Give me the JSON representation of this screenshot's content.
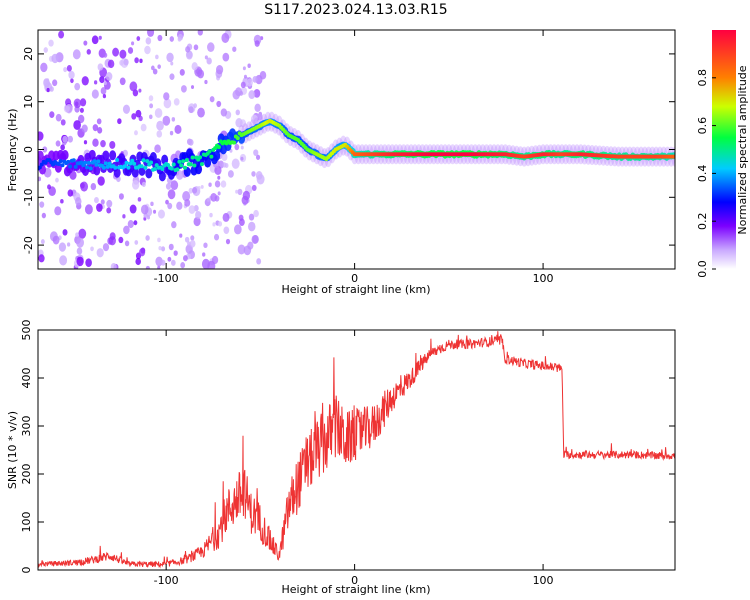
{
  "figure": {
    "title": "S117.2023.024.13.03.R15"
  },
  "chart_data": [
    {
      "type": "heatmap",
      "xlabel": "Height of straight line (km)",
      "ylabel": "Frequency (Hz)",
      "xlim": [
        -168,
        170
      ],
      "ylim": [
        -25,
        25
      ],
      "x_ticks": [
        -100,
        0,
        100
      ],
      "y_ticks": [
        -20,
        -10,
        0,
        10,
        20
      ],
      "colorbar": {
        "label": "Normalized spectral amplitude",
        "range": [
          0,
          1
        ],
        "ticks": [
          0.0,
          0.2,
          0.4,
          0.6,
          0.8
        ],
        "tick_labels": [
          "0.0",
          "0.2",
          "0.4",
          "0.6",
          "0.8"
        ],
        "colors": [
          "#ffffff",
          "#7b00ff",
          "#0000ff",
          "#00ccff",
          "#00ff40",
          "#ccff00",
          "#ff8000",
          "#ff0040"
        ]
      },
      "ridge": {
        "x": [
          -168,
          -150,
          -130,
          -110,
          -100,
          -90,
          -80,
          -70,
          -60,
          -50,
          -45,
          -40,
          -35,
          -30,
          -25,
          -20,
          -15,
          -10,
          -5,
          0,
          10,
          20,
          40,
          60,
          80,
          90,
          100,
          110,
          120,
          140,
          160,
          170
        ],
        "freq": [
          -3,
          -3,
          -3,
          -3,
          -4,
          -3,
          -2,
          1,
          3,
          5,
          6,
          5,
          3,
          2,
          0,
          -1,
          -2,
          0,
          1,
          -1,
          -1,
          -1,
          -1,
          -1,
          -1,
          -1.5,
          -1,
          -1,
          -1,
          -1.5,
          -1.5,
          -1.5
        ],
        "amplitude": [
          0.3,
          0.35,
          0.4,
          0.45,
          0.45,
          0.5,
          0.5,
          0.55,
          0.6,
          0.65,
          0.7,
          0.65,
          0.6,
          0.6,
          0.6,
          0.65,
          0.65,
          0.7,
          0.7,
          0.85,
          0.9,
          0.95,
          1.0,
          1.0,
          0.95,
          0.9,
          0.95,
          0.9,
          0.95,
          0.9,
          0.9,
          0.85
        ]
      }
    },
    {
      "type": "line",
      "xlabel": "Height of straight line (km)",
      "ylabel": "SNR (10 * v/v)",
      "xlim": [
        -168,
        170
      ],
      "ylim": [
        0,
        500
      ],
      "x_ticks": [
        -100,
        0,
        100
      ],
      "y_ticks": [
        0,
        100,
        200,
        300,
        400,
        500
      ],
      "line_color": "#ee3333",
      "series": [
        {
          "x": [
            -168,
            -150,
            -140,
            -130,
            -120,
            -100,
            -90,
            -80,
            -72,
            -68,
            -62,
            -58,
            -55,
            -50,
            -45,
            -40,
            -35,
            -30,
            -25,
            -20,
            -15,
            -10,
            -5,
            0,
            5,
            10,
            15,
            20,
            25,
            30,
            40,
            50,
            60,
            70,
            78,
            80,
            90,
            100,
            110,
            111,
            115,
            120,
            130,
            140,
            150,
            160,
            170
          ],
          "y": [
            12,
            15,
            20,
            30,
            12,
            12,
            20,
            40,
            80,
            120,
            150,
            160,
            120,
            100,
            60,
            30,
            130,
            180,
            220,
            250,
            270,
            300,
            270,
            280,
            290,
            300,
            330,
            360,
            380,
            400,
            450,
            470,
            470,
            475,
            478,
            440,
            430,
            425,
            420,
            240,
            240,
            240,
            240,
            240,
            240,
            238,
            238
          ],
          "noise": [
            5,
            6,
            8,
            10,
            6,
            6,
            8,
            15,
            35,
            45,
            55,
            55,
            45,
            40,
            25,
            15,
            50,
            60,
            60,
            65,
            70,
            70,
            60,
            55,
            50,
            45,
            40,
            30,
            25,
            20,
            12,
            10,
            10,
            10,
            10,
            10,
            10,
            10,
            10,
            8,
            8,
            8,
            8,
            8,
            8,
            8,
            8
          ]
        }
      ]
    }
  ]
}
